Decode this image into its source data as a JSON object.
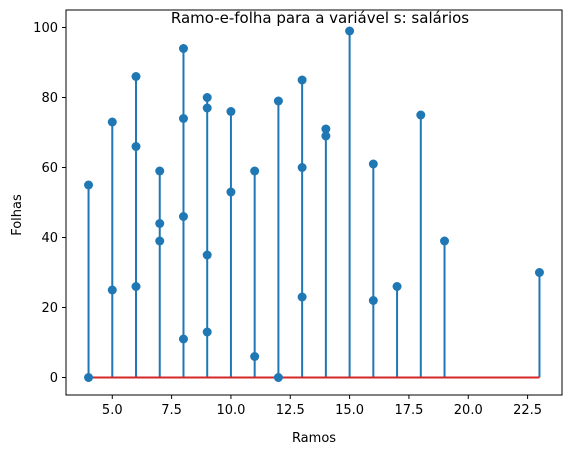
{
  "chart_data": {
    "type": "scatter",
    "subtype": "stem",
    "title": "Ramo-e-folha para a variável s: salários",
    "xlabel": "Ramos",
    "ylabel": "Folhas",
    "xlim": [
      3.05,
      23.95
    ],
    "ylim": [
      -5,
      105
    ],
    "xticks": [
      5.0,
      7.5,
      10.0,
      12.5,
      15.0,
      17.5,
      20.0,
      22.5
    ],
    "xtick_labels": [
      "5.0",
      "7.5",
      "10.0",
      "12.5",
      "15.0",
      "17.5",
      "20.0",
      "22.5"
    ],
    "yticks": [
      0,
      20,
      40,
      60,
      80,
      100
    ],
    "ytick_labels": [
      "0",
      "20",
      "40",
      "60",
      "80",
      "100"
    ],
    "grid": false,
    "stem_color": "#1f77b4",
    "marker_color": "#1f77b4",
    "baseline_color": "#d62728",
    "baseline_range": [
      4,
      23
    ],
    "points": [
      {
        "x": 4,
        "y": 55
      },
      {
        "x": 4,
        "y": 0
      },
      {
        "x": 5,
        "y": 73
      },
      {
        "x": 5,
        "y": 25
      },
      {
        "x": 6,
        "y": 86
      },
      {
        "x": 6,
        "y": 66
      },
      {
        "x": 6,
        "y": 26
      },
      {
        "x": 7,
        "y": 59
      },
      {
        "x": 7,
        "y": 44
      },
      {
        "x": 7,
        "y": 39
      },
      {
        "x": 8,
        "y": 94
      },
      {
        "x": 8,
        "y": 74
      },
      {
        "x": 8,
        "y": 46
      },
      {
        "x": 8,
        "y": 11
      },
      {
        "x": 9,
        "y": 80
      },
      {
        "x": 9,
        "y": 77
      },
      {
        "x": 9,
        "y": 35
      },
      {
        "x": 9,
        "y": 13
      },
      {
        "x": 10,
        "y": 76
      },
      {
        "x": 10,
        "y": 53
      },
      {
        "x": 11,
        "y": 59
      },
      {
        "x": 11,
        "y": 6
      },
      {
        "x": 12,
        "y": 79
      },
      {
        "x": 12,
        "y": 0
      },
      {
        "x": 13,
        "y": 85
      },
      {
        "x": 13,
        "y": 60
      },
      {
        "x": 13,
        "y": 23
      },
      {
        "x": 14,
        "y": 71
      },
      {
        "x": 14,
        "y": 69
      },
      {
        "x": 15,
        "y": 99
      },
      {
        "x": 16,
        "y": 61
      },
      {
        "x": 16,
        "y": 22
      },
      {
        "x": 17,
        "y": 26
      },
      {
        "x": 18,
        "y": 75
      },
      {
        "x": 19,
        "y": 39
      },
      {
        "x": 23,
        "y": 30
      }
    ]
  }
}
